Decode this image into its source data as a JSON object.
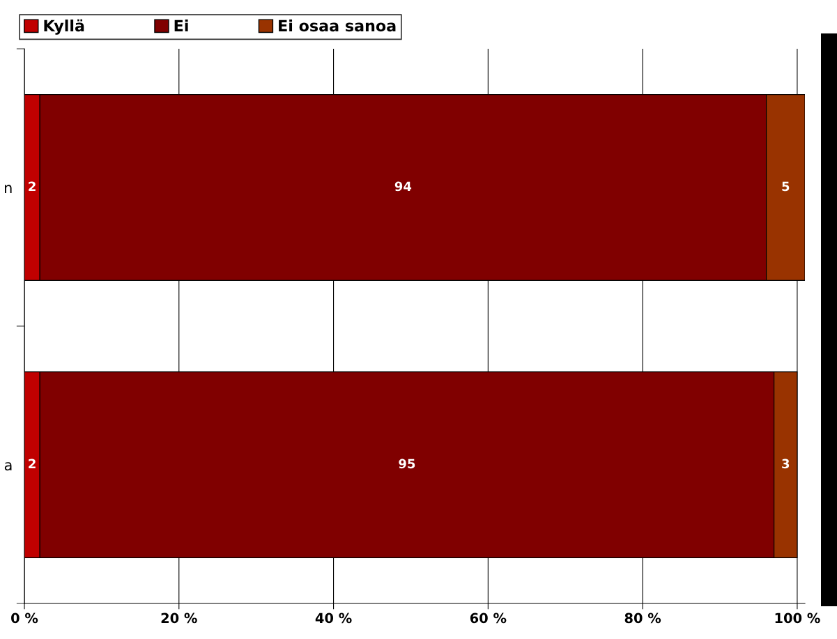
{
  "chart_data": {
    "type": "bar",
    "orientation": "horizontal",
    "stacked": true,
    "categories": [
      "n",
      "a"
    ],
    "series": [
      {
        "name": "Kyllä",
        "color": "#c00000",
        "values": [
          2,
          2
        ],
        "value_labels": [
          "2",
          "2"
        ]
      },
      {
        "name": "Ei",
        "color": "#800000",
        "values": [
          94,
          95
        ],
        "value_labels": [
          "94",
          "95"
        ]
      },
      {
        "name": "Ei osaa sanoa",
        "color": "#993300",
        "values": [
          5,
          3
        ],
        "value_labels": [
          "5",
          "3"
        ]
      }
    ],
    "xlim": [
      0,
      101
    ],
    "xticks": [
      {
        "value": 0,
        "label": "0 %"
      },
      {
        "value": 20,
        "label": "20 %"
      },
      {
        "value": 40,
        "label": "40 %"
      },
      {
        "value": 60,
        "label": "60 %"
      },
      {
        "value": 80,
        "label": "80 %"
      },
      {
        "value": 100,
        "label": "100 %"
      }
    ],
    "grid": "x",
    "legend": "top"
  }
}
